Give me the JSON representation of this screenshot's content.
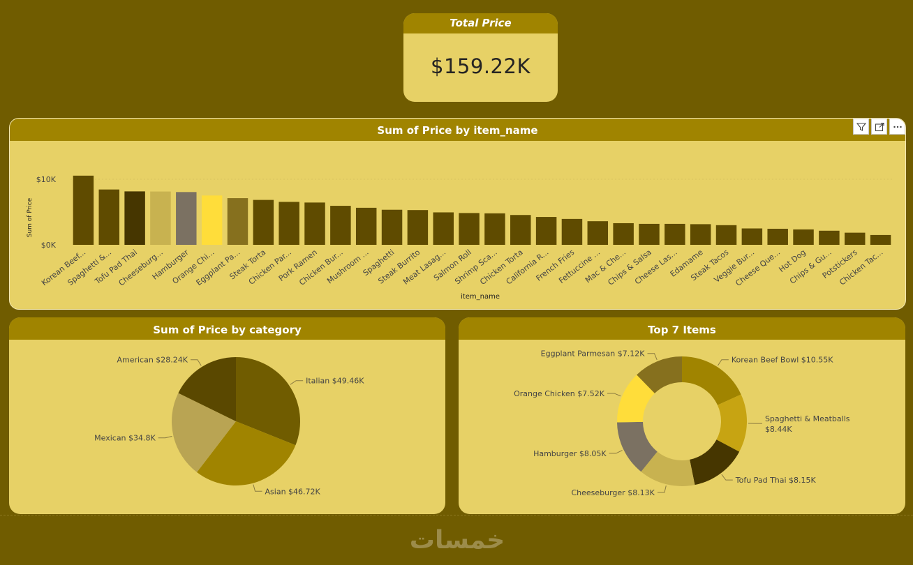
{
  "kpi": {
    "title": "Total Price",
    "value": "$159.22K"
  },
  "bar_chart": {
    "title": "Sum of Price by item_name",
    "icons": [
      "filter-icon",
      "focus-mode-icon",
      "more-options-icon"
    ]
  },
  "pie_chart": {
    "title": "Sum of Price by category"
  },
  "donut_chart": {
    "title": "Top 7 Items"
  },
  "watermark": {
    "text": "خمسات"
  },
  "colors": {
    "background": "#705c00",
    "card": "#e7d166",
    "header": "#a08400",
    "bar": "#5f4b00"
  },
  "chart_data": [
    {
      "type": "bar",
      "title": "Sum of Price by item_name",
      "xlabel": "item_name",
      "ylabel": "Sum of Price",
      "yticks": [
        "$0K",
        "$10K"
      ],
      "ylim": [
        0,
        12000
      ],
      "categories": [
        "Korean Beef...",
        "Spaghetti &...",
        "Tofu Pad Thai",
        "Cheeseburg...",
        "Hamburger",
        "Orange Chi...",
        "Eggplant Pa...",
        "Steak Torta",
        "Chicken Par...",
        "Pork Ramen",
        "Chicken Bur...",
        "Mushroom ...",
        "Spaghetti",
        "Steak Burrito",
        "Meat Lasag...",
        "Salmon Roll",
        "Shrimp Sca...",
        "Chicken Torta",
        "California R...",
        "French Fries",
        "Fettuccine ...",
        "Mac & Che...",
        "Chips & Salsa",
        "Cheese Las...",
        "Edamame",
        "Steak Tacos",
        "Veggie Bur...",
        "Cheese Que...",
        "Hot Dog",
        "Chips & Gu...",
        "Potstickers",
        "Chicken Tac..."
      ],
      "values": [
        10550,
        8440,
        8150,
        8130,
        8050,
        7520,
        7120,
        6850,
        6550,
        6450,
        5950,
        5650,
        5350,
        5300,
        4950,
        4850,
        4800,
        4550,
        4250,
        3950,
        3600,
        3300,
        3200,
        3200,
        3150,
        3000,
        2500,
        2450,
        2350,
        2150,
        1850,
        1500
      ],
      "bar_colors": [
        "#5f4b00",
        "#5f4b00",
        "#463600",
        "#c8b250",
        "#7b7162",
        "#ffdd3a",
        "#86701e",
        "#5f4b00",
        "#5f4b00",
        "#5f4b00",
        "#5f4b00",
        "#5f4b00",
        "#5f4b00",
        "#5f4b00",
        "#5f4b00",
        "#5f4b00",
        "#5f4b00",
        "#5f4b00",
        "#5f4b00",
        "#5f4b00",
        "#5f4b00",
        "#5f4b00",
        "#5f4b00",
        "#5f4b00",
        "#5f4b00",
        "#5f4b00",
        "#5f4b00",
        "#5f4b00",
        "#5f4b00",
        "#5f4b00",
        "#5f4b00",
        "#5f4b00"
      ]
    },
    {
      "type": "pie",
      "title": "Sum of Price by category",
      "slices": [
        {
          "label": "Italian $49.46K",
          "value": 49460,
          "color": "#705c00"
        },
        {
          "label": "Asian $46.72K",
          "value": 46720,
          "color": "#a08400"
        },
        {
          "label": "Mexican $34.8K",
          "value": 34800,
          "color": "#b9a453"
        },
        {
          "label": "American $28.24K",
          "value": 28240,
          "color": "#5a4800"
        }
      ]
    },
    {
      "type": "pie",
      "subtype": "donut",
      "title": "Top 7 Items",
      "slices": [
        {
          "label": "Korean Beef Bowl $10.55K",
          "value": 10550,
          "color": "#a08400"
        },
        {
          "label": "Spaghetti & Meatballs $8.44K",
          "value": 8440,
          "color": "#c7a412"
        },
        {
          "label": "Tofu Pad Thai $8.15K",
          "value": 8150,
          "color": "#463600"
        },
        {
          "label": "Cheeseburger $8.13K",
          "value": 8130,
          "color": "#c8b250"
        },
        {
          "label": "Hamburger $8.05K",
          "value": 8050,
          "color": "#7b7162"
        },
        {
          "label": "Orange Chicken $7.52K",
          "value": 7520,
          "color": "#ffdd3a"
        },
        {
          "label": "Eggplant Parmesan $7.12K",
          "value": 7120,
          "color": "#86701e"
        }
      ]
    }
  ]
}
